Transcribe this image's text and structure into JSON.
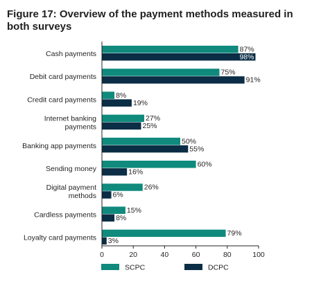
{
  "figure": {
    "title": "Figure 17: Overview of the payment methods measured in both surveys"
  },
  "colors": {
    "scpc": "#0f8a7c",
    "dcpc": "#0b2d45",
    "axis": "#231f20"
  },
  "chart_data": {
    "type": "bar",
    "orientation": "horizontal",
    "title": "Figure 17: Overview of the payment methods measured in both surveys",
    "xlabel": "",
    "ylabel": "",
    "categories": [
      "Cash payments",
      "Debit card payments",
      "Credit card payments",
      "Internet banking payments",
      "Banking app payments",
      "Sending money",
      "Digital payment methods",
      "Cardless payments",
      "Loyalty card payments"
    ],
    "category_lines": [
      [
        "Cash payments"
      ],
      [
        "Debit card payments"
      ],
      [
        "Credit card payments"
      ],
      [
        "Internet banking",
        "payments"
      ],
      [
        "Banking app payments"
      ],
      [
        "Sending money"
      ],
      [
        "Digital payment",
        "methods"
      ],
      [
        "Cardless payments"
      ],
      [
        "Loyalty card payments"
      ]
    ],
    "series": [
      {
        "name": "SCPC",
        "values": [
          87,
          75,
          8,
          27,
          50,
          60,
          26,
          15,
          79
        ]
      },
      {
        "name": "DCPC",
        "values": [
          98,
          91,
          19,
          25,
          55,
          16,
          6,
          8,
          3
        ]
      }
    ],
    "value_suffix": "%",
    "xlim": [
      0,
      100
    ],
    "xticks": [
      0,
      20,
      40,
      60,
      80,
      100
    ],
    "grid": false,
    "legend_position": "bottom"
  }
}
